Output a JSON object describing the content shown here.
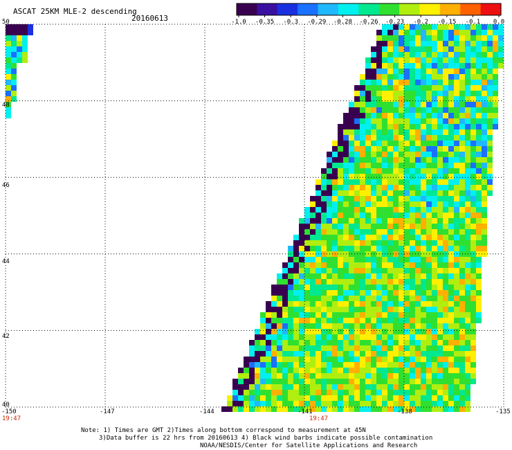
{
  "title": "ASCAT 25KM MLE-2 descending",
  "date": "20160613",
  "colorbar": {
    "labels": [
      "-1.0",
      "-0.35",
      "-0.3",
      "-0.29",
      "-0.28",
      "-0.26",
      "-0.23",
      "-0.2",
      "-0.15",
      "-0.1",
      "0.0"
    ],
    "colors": [
      "#3a0050",
      "#3a10a0",
      "#1a30e0",
      "#1a70ff",
      "#20b8ff",
      "#00f0f0",
      "#00e890",
      "#30e030",
      "#b0ee10",
      "#fff000",
      "#ffb000",
      "#ff6000",
      "#ee1010"
    ]
  },
  "axes": {
    "lat_labels": [
      "50",
      "48",
      "46",
      "44",
      "42",
      "40"
    ],
    "lon_labels": [
      "-150",
      "-147",
      "-144",
      "-141",
      "-138",
      "-135"
    ],
    "lat_values": [
      50,
      48,
      46,
      44,
      42,
      40
    ],
    "lon_values": [
      -150,
      -147,
      -144,
      -141,
      -138,
      -135
    ],
    "times": [
      "19:47",
      "19:47"
    ]
  },
  "notes": {
    "line1": "Note: 1) Times are GMT 2)Times along bottom correspond to measurement at 45N",
    "line2": "3)Data buffer is 22 hrs from 20160613 4) Black wind barbs indicate possible contamination",
    "line3": "NOAA/NESDIS/Center for Satellite Applications and Research"
  },
  "swath": {
    "description_values": "MLE-2 values colored per color scale over latitude 40-50N, longitude 150W-135W"
  }
}
